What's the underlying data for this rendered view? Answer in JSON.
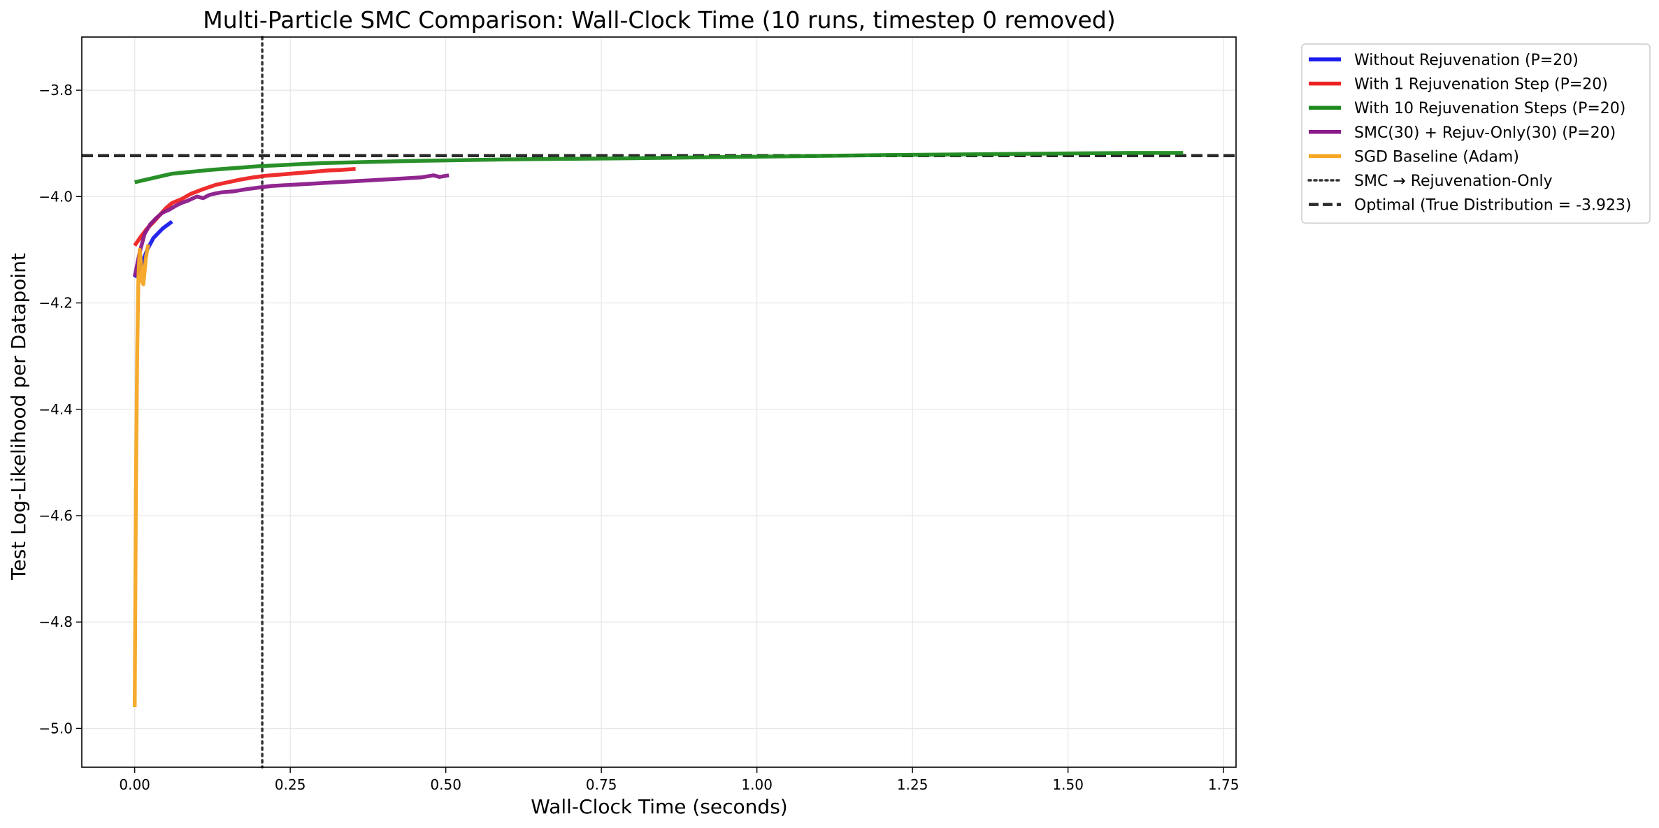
{
  "chart_data": {
    "type": "line",
    "title": "Multi-Particle SMC Comparison: Wall-Clock Time (10 runs, timestep 0 removed)",
    "xlabel": "Wall-Clock Time (seconds)",
    "ylabel": "Test Log-Likelihood per Datapoint",
    "xlim": [
      -0.085,
      1.77
    ],
    "ylim": [
      -5.073,
      -3.7
    ],
    "xticks": [
      0.0,
      0.25,
      0.5,
      0.75,
      1.0,
      1.25,
      1.5,
      1.75
    ],
    "xtick_labels": [
      "0.00",
      "0.25",
      "0.50",
      "0.75",
      "1.00",
      "1.25",
      "1.50",
      "1.75"
    ],
    "yticks": [
      -3.8,
      -4.0,
      -4.2,
      -4.4,
      -4.6,
      -4.8,
      -5.0
    ],
    "ytick_labels": [
      "−3.8",
      "−4.0",
      "−4.2",
      "−4.4",
      "−4.6",
      "−4.8",
      "−5.0"
    ],
    "grid": true,
    "legend_position": "outside-top-right",
    "series": [
      {
        "name": "Without Rejuvenation (P=20)",
        "color": "#1a1aee",
        "style": "solid",
        "x": [
          0.0,
          0.006,
          0.012,
          0.02,
          0.03,
          0.045,
          0.06
        ],
        "y": [
          -4.152,
          -4.14,
          -4.125,
          -4.1,
          -4.078,
          -4.06,
          -4.047
        ]
      },
      {
        "name": "With 1 Rejuvenation Step (P=20)",
        "color": "#ee2222",
        "style": "solid",
        "x": [
          0.0,
          0.01,
          0.02,
          0.03,
          0.04,
          0.05,
          0.06,
          0.075,
          0.09,
          0.11,
          0.13,
          0.15,
          0.17,
          0.19,
          0.21,
          0.23,
          0.25,
          0.27,
          0.29,
          0.31,
          0.33,
          0.355
        ],
        "y": [
          -4.092,
          -4.075,
          -4.06,
          -4.048,
          -4.035,
          -4.022,
          -4.012,
          -4.005,
          -3.995,
          -3.986,
          -3.978,
          -3.973,
          -3.968,
          -3.964,
          -3.961,
          -3.959,
          -3.957,
          -3.955,
          -3.953,
          -3.951,
          -3.95,
          -3.948
        ]
      },
      {
        "name": "With 10 Rejuvenation Steps (P=20)",
        "color": "#1e8a1e",
        "style": "solid",
        "x": [
          0.0,
          0.06,
          0.12,
          0.2,
          0.3,
          0.45,
          0.6,
          0.8,
          1.0,
          1.2,
          1.4,
          1.6,
          1.685
        ],
        "y": [
          -3.973,
          -3.957,
          -3.95,
          -3.943,
          -3.937,
          -3.933,
          -3.93,
          -3.928,
          -3.925,
          -3.922,
          -3.92,
          -3.918,
          -3.918
        ]
      },
      {
        "name": "SMC(30) + Rejuv-Only(30) (P=20)",
        "color": "#8a1a8a",
        "style": "solid",
        "x": [
          0.0,
          0.008,
          0.016,
          0.025,
          0.035,
          0.045,
          0.055,
          0.065,
          0.075,
          0.085,
          0.1,
          0.11,
          0.12,
          0.13,
          0.14,
          0.16,
          0.18,
          0.2,
          0.22,
          0.25,
          0.28,
          0.31,
          0.34,
          0.37,
          0.4,
          0.43,
          0.46,
          0.48,
          0.49,
          0.505
        ],
        "y": [
          -4.15,
          -4.105,
          -4.07,
          -4.052,
          -4.04,
          -4.03,
          -4.025,
          -4.018,
          -4.012,
          -4.008,
          -4.0,
          -4.003,
          -3.997,
          -3.994,
          -3.992,
          -3.99,
          -3.986,
          -3.983,
          -3.98,
          -3.978,
          -3.976,
          -3.974,
          -3.972,
          -3.97,
          -3.968,
          -3.966,
          -3.964,
          -3.96,
          -3.963,
          -3.96
        ]
      },
      {
        "name": "SGD Baseline (Adam)",
        "color": "#f5a623",
        "style": "solid",
        "x": [
          0.0,
          0.002,
          0.004,
          0.006,
          0.008,
          0.01,
          0.012,
          0.014,
          0.016,
          0.018,
          0.02,
          0.022
        ],
        "y": [
          -4.96,
          -4.55,
          -4.3,
          -4.15,
          -4.1,
          -4.125,
          -4.16,
          -4.165,
          -4.14,
          -4.115,
          -4.1,
          -4.09
        ]
      }
    ],
    "reference_lines": [
      {
        "name": "SMC → Rejuvenation-Only",
        "orientation": "vertical",
        "x": 0.205,
        "color": "#333333",
        "style": "dotted"
      },
      {
        "name": "Optimal (True Distribution = -3.923)",
        "orientation": "horizontal",
        "y": -3.923,
        "color": "#2a2a2a",
        "style": "dashed"
      }
    ]
  }
}
